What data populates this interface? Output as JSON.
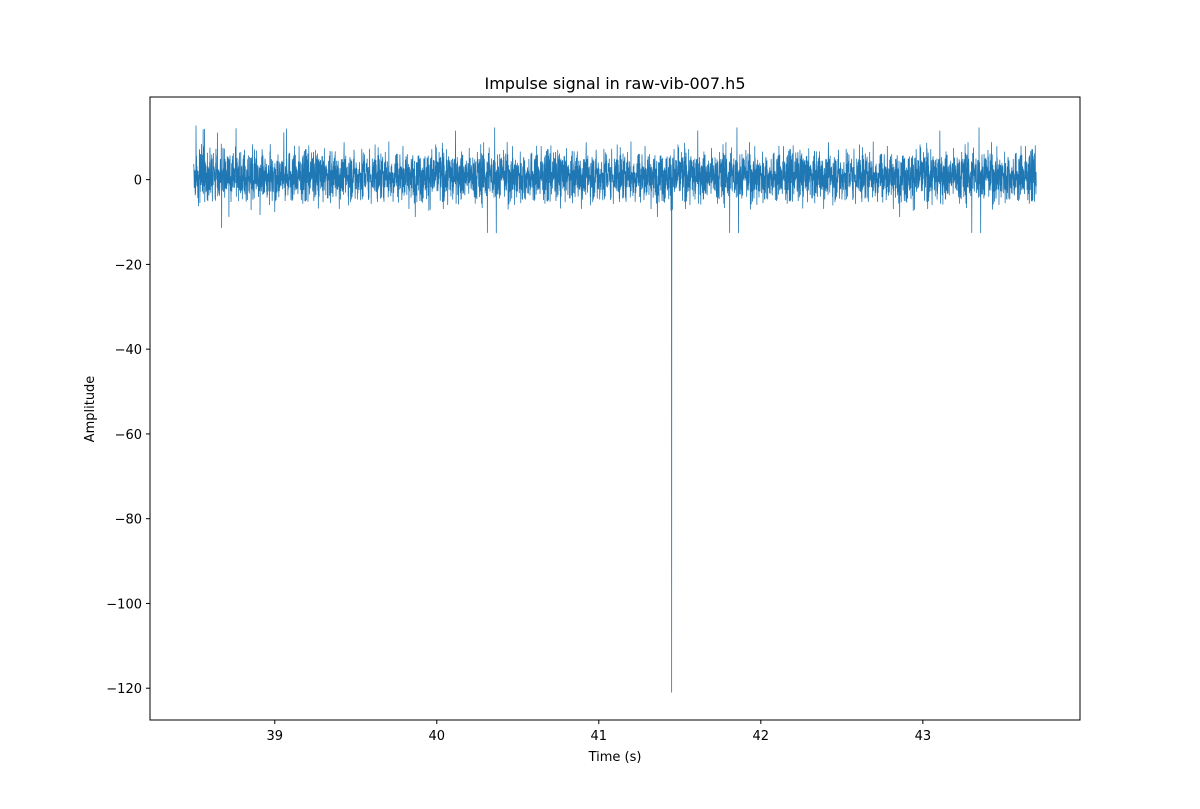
{
  "chart_data": {
    "type": "line",
    "title": "Impulse signal in raw-vib-007.h5",
    "xlabel": "Time (s)",
    "ylabel": "Amplitude",
    "xlim": [
      38.23,
      43.97
    ],
    "ylim": [
      -127.5,
      19.5
    ],
    "xticks": [
      39,
      40,
      41,
      42,
      43
    ],
    "xtick_labels": [
      "39",
      "40",
      "41",
      "42",
      "43"
    ],
    "yticks": [
      0,
      -20,
      -40,
      -60,
      -80,
      -100,
      -120
    ],
    "ytick_labels": [
      "0",
      "−20",
      "−40",
      "−60",
      "−80",
      "−100",
      "−120"
    ],
    "grid": false,
    "legend": "none",
    "line_color": "#1f77b4",
    "series": [
      {
        "x_start": 38.5,
        "x_end": 43.7,
        "noise": {
          "typical_band": [
            -6,
            8
          ],
          "max": 13,
          "min": -13
        },
        "impulse": {
          "x": 41.45,
          "y": -121
        }
      }
    ]
  }
}
